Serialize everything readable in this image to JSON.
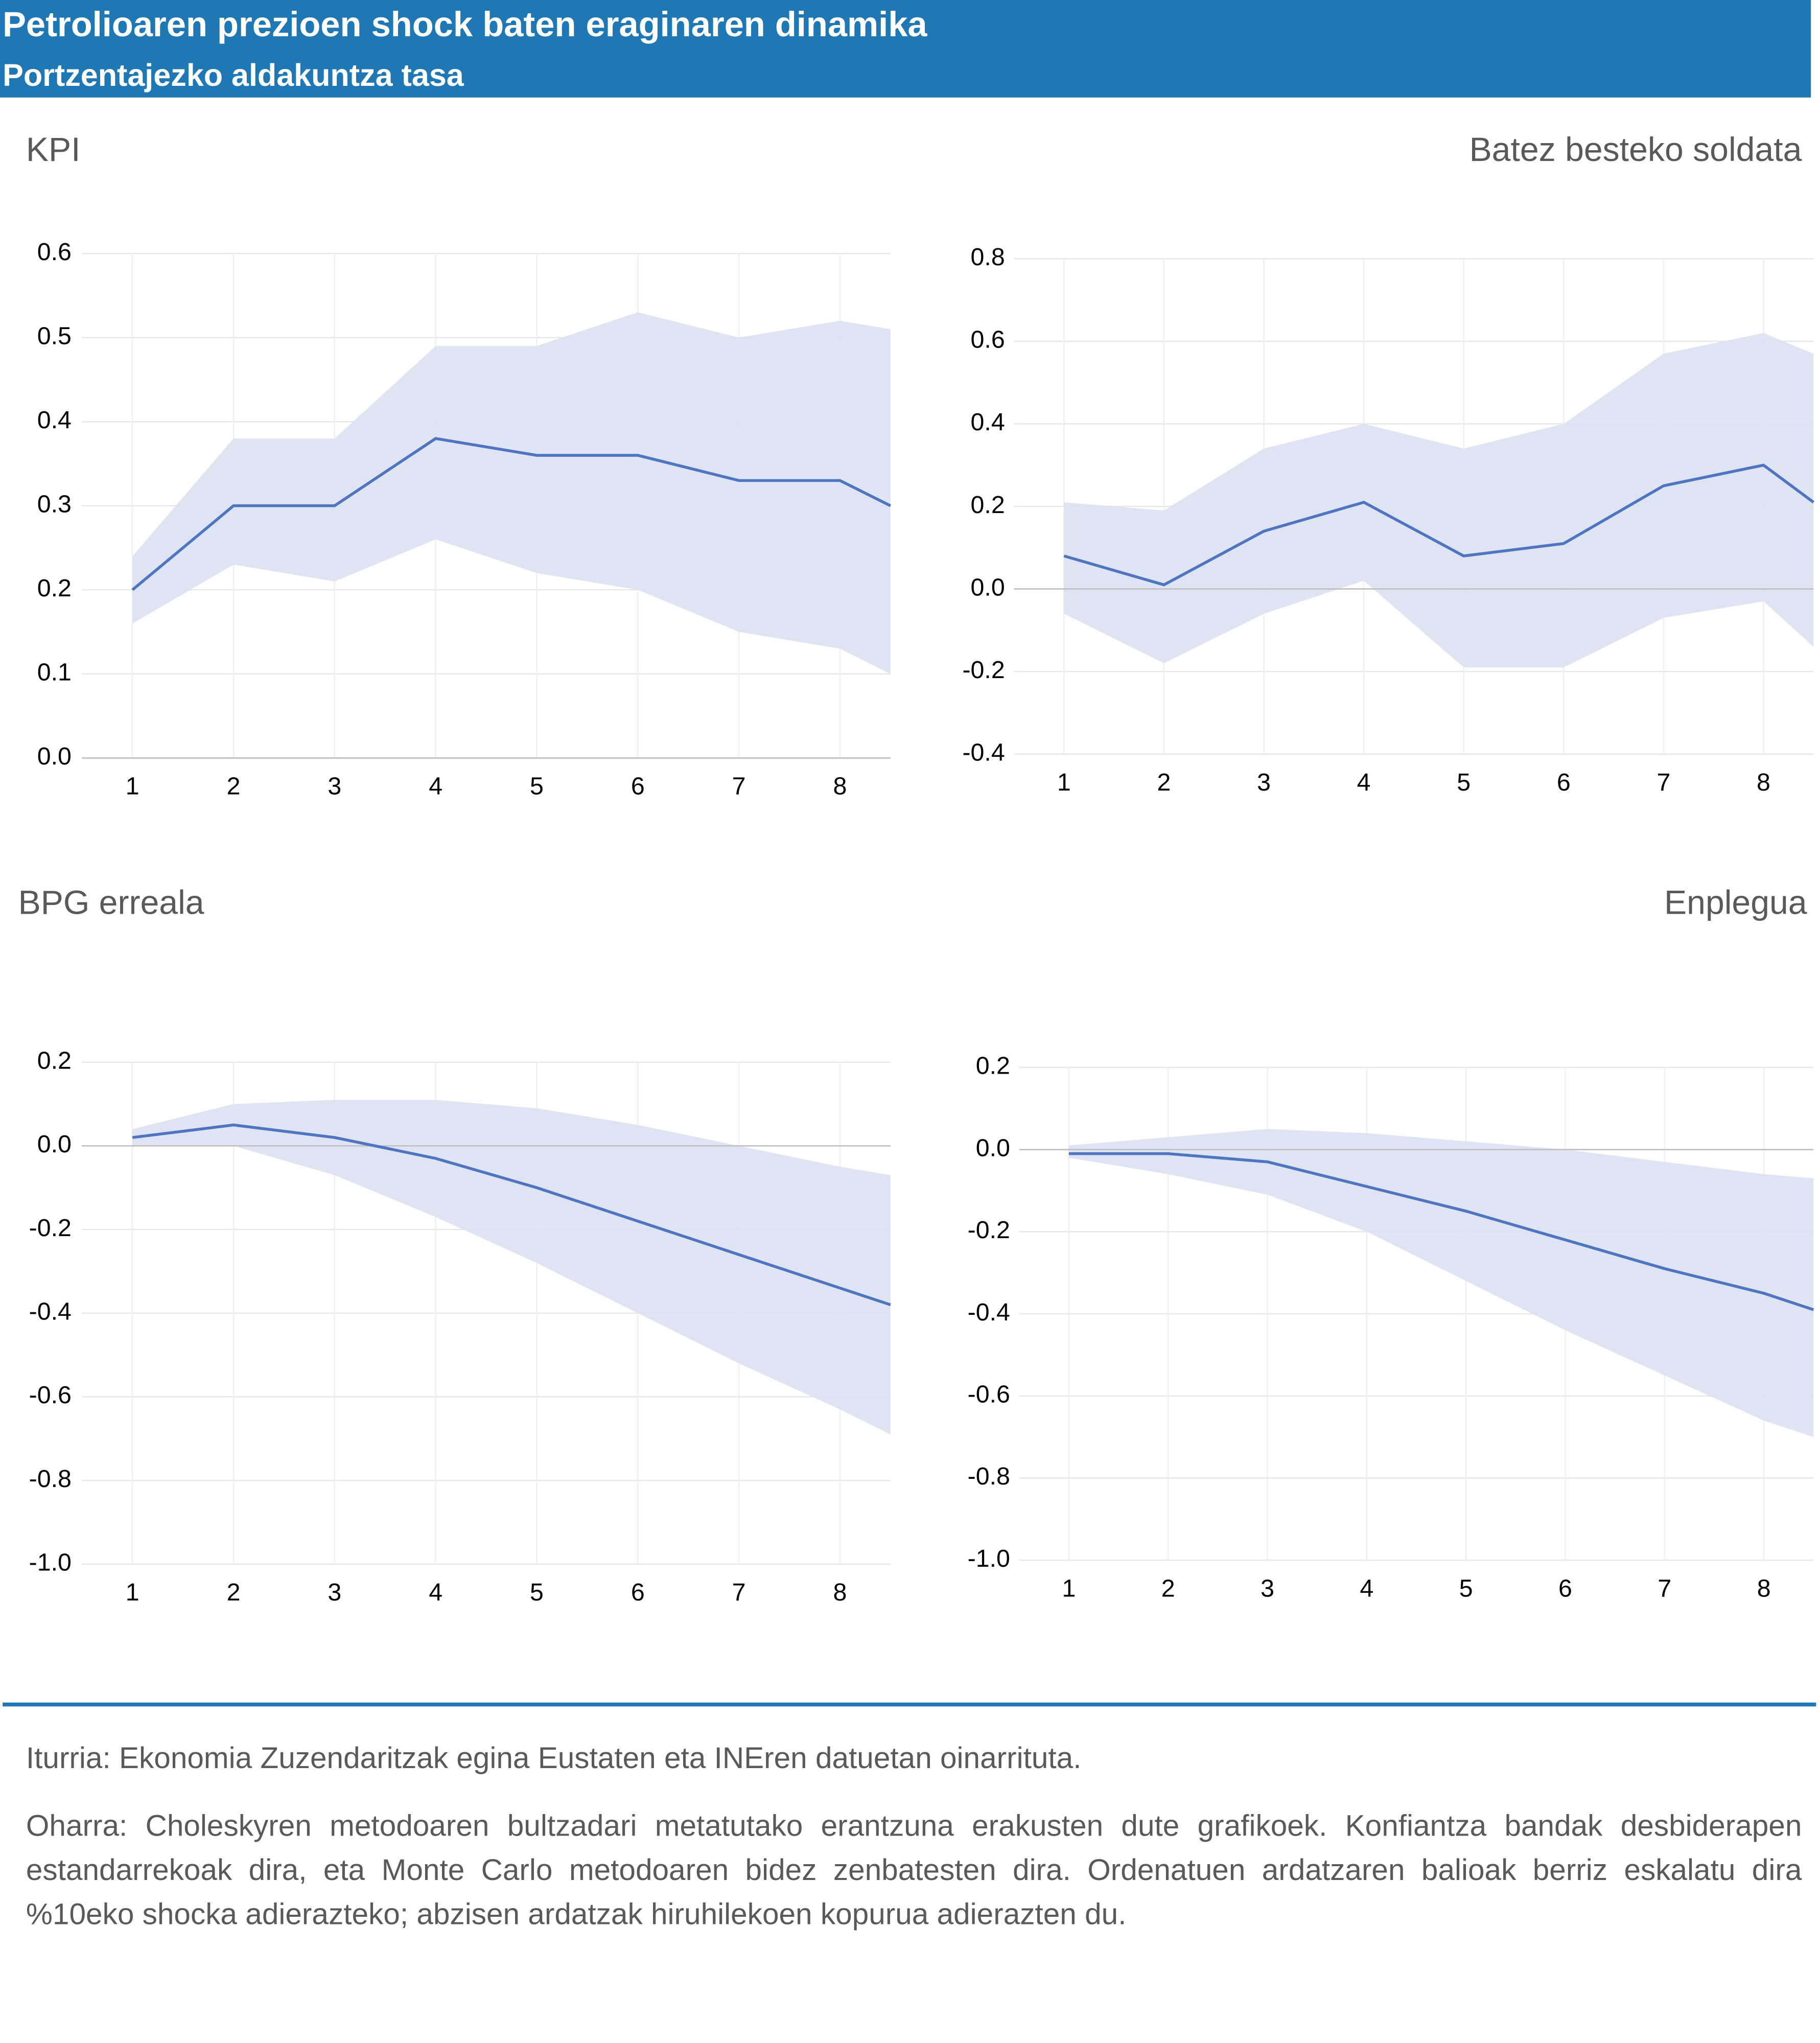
{
  "header": {
    "title": "Petrolioaren prezioen shock baten eraginaren dinamika",
    "subtitle": "Portzentajezko aldakuntza tasa"
  },
  "chart_data": [
    {
      "type": "line",
      "title": "KPI",
      "x": [
        1,
        2,
        3,
        4,
        5,
        6,
        7,
        8,
        8.5
      ],
      "xlim": [
        0.5,
        8.5
      ],
      "xticks": [
        1,
        2,
        3,
        4,
        5,
        6,
        7,
        8
      ],
      "ylim": [
        0,
        0.6
      ],
      "yticks": [
        {
          "value": 0,
          "label": "0.0"
        },
        0.1,
        0.2,
        0.3,
        0.4,
        0.5,
        0.6
      ],
      "grid": true,
      "color": "#4f74c0",
      "band_color": "#dae1ef",
      "values": [
        0.2,
        0.3,
        0.3,
        0.38,
        0.36,
        0.36,
        0.33,
        0.33,
        0.3
      ],
      "upper": [
        0.24,
        0.38,
        0.38,
        0.49,
        0.49,
        0.53,
        0.5,
        0.52,
        0.51
      ],
      "lower": [
        0.16,
        0.23,
        0.21,
        0.26,
        0.22,
        0.2,
        0.15,
        0.13,
        0.1
      ]
    },
    {
      "type": "line",
      "title": "Batez besteko soldata",
      "x": [
        1,
        2,
        3,
        4,
        5,
        6,
        7,
        8,
        8.5
      ],
      "xlim": [
        0.5,
        8.5
      ],
      "xticks": [
        1,
        2,
        3,
        4,
        5,
        6,
        7,
        8
      ],
      "ylim": [
        -0.4,
        0.8
      ],
      "yticks": [
        -0.4,
        -0.2,
        {
          "value": 0,
          "label": "0.0"
        },
        0.2,
        0.4,
        0.6,
        0.8
      ],
      "grid": true,
      "color": "#4f74c0",
      "band_color": "#dae1ef",
      "values": [
        0.08,
        0.01,
        0.14,
        0.21,
        0.08,
        0.11,
        0.25,
        0.3,
        0.21
      ],
      "upper": [
        0.21,
        0.19,
        0.34,
        0.4,
        0.34,
        0.4,
        0.57,
        0.62,
        0.57
      ],
      "lower": [
        -0.06,
        -0.18,
        -0.06,
        0.02,
        -0.19,
        -0.19,
        -0.07,
        -0.03,
        -0.14
      ]
    },
    {
      "type": "line",
      "title": "BPG erreala",
      "x": [
        1,
        2,
        3,
        4,
        5,
        6,
        7,
        8,
        8.5
      ],
      "xlim": [
        0.5,
        8.5
      ],
      "xticks": [
        1,
        2,
        3,
        4,
        5,
        6,
        7,
        8
      ],
      "ylim": [
        -1,
        0.2
      ],
      "yticks": [
        {
          "value": -1,
          "label": "-1.0"
        },
        -0.8,
        -0.6,
        -0.4,
        -0.2,
        {
          "value": 0,
          "label": "0.0"
        },
        0.2
      ],
      "grid": true,
      "color": "#4f74c0",
      "band_color": "#dae1ef",
      "values": [
        0.02,
        0.05,
        0.02,
        -0.03,
        -0.1,
        -0.18,
        -0.26,
        -0.34,
        -0.38
      ],
      "upper": [
        0.04,
        0.1,
        0.11,
        0.11,
        0.09,
        0.05,
        0,
        -0.05,
        -0.07
      ],
      "lower": [
        0,
        0,
        -0.07,
        -0.17,
        -0.28,
        -0.4,
        -0.52,
        -0.63,
        -0.69
      ]
    },
    {
      "type": "line",
      "title": "Enplegua",
      "x": [
        1,
        2,
        3,
        4,
        5,
        6,
        7,
        8,
        8.5
      ],
      "xlim": [
        0.5,
        8.5
      ],
      "xticks": [
        1,
        2,
        3,
        4,
        5,
        6,
        7,
        8
      ],
      "ylim": [
        -1,
        0.2
      ],
      "yticks": [
        {
          "value": -1,
          "label": "-1.0"
        },
        -0.8,
        -0.6,
        -0.4,
        -0.2,
        {
          "value": 0,
          "label": "0.0"
        },
        0.2
      ],
      "grid": true,
      "color": "#4f74c0",
      "band_color": "#dae1ef",
      "values": [
        -0.01,
        -0.01,
        -0.03,
        -0.09,
        -0.15,
        -0.22,
        -0.29,
        -0.35,
        -0.39
      ],
      "upper": [
        0.01,
        0.03,
        0.05,
        0.04,
        0.02,
        0,
        -0.03,
        -0.06,
        -0.07
      ],
      "lower": [
        -0.02,
        -0.06,
        -0.11,
        -0.2,
        -0.32,
        -0.44,
        -0.55,
        -0.66,
        -0.7
      ]
    }
  ],
  "footer": {
    "source": "Iturria: Ekonomia Zuzendaritzak egina Eustaten eta INEren datuetan oinarrituta.",
    "note": "Oharra: Choleskyren metodoaren bultzadari metatutako erantzuna erakusten dute grafikoek. Konfiantza bandak desbiderapen estandarrekoak dira, eta Monte Carlo metodoaren bidez zenbatesten dira. Ordenatuen ardatzaren balioak berriz eskalatu dira %10eko shocka adierazteko; abzisen ardatzak hiruhilekoen kopurua adierazten du."
  }
}
